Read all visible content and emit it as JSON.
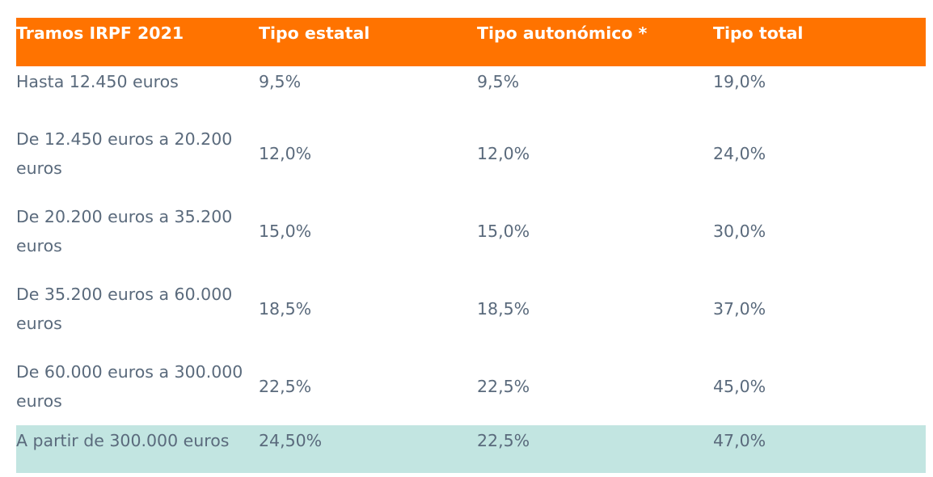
{
  "table": {
    "headers": [
      "Tramos IRPF 2021",
      "Tipo estatal",
      "Tipo autonómico *",
      "Tipo total"
    ],
    "rows": [
      [
        "Hasta 12.450 euros",
        "9,5%",
        "9,5%",
        "19,0%"
      ],
      [
        "De 12.450 euros a 20.200 euros",
        "12,0%",
        "12,0%",
        "24,0%"
      ],
      [
        "De 20.200 euros a 35.200 euros",
        "15,0%",
        "15,0%",
        "30,0%"
      ],
      [
        "De 35.200 euros a 60.000 euros",
        "18,5%",
        "18,5%",
        "37,0%"
      ],
      [
        "De 60.000 euros a 300.000 euros",
        "22,5%",
        "22,5%",
        "45,0%"
      ],
      [
        "A partir de 300.000 euros",
        "24,50%",
        "22,5%",
        "47,0%"
      ]
    ]
  },
  "colors": {
    "header_bg": "#ff7300",
    "header_text": "#ffffff",
    "body_text": "#5a6a7c",
    "highlight_row_bg": "#c2e5e1"
  }
}
